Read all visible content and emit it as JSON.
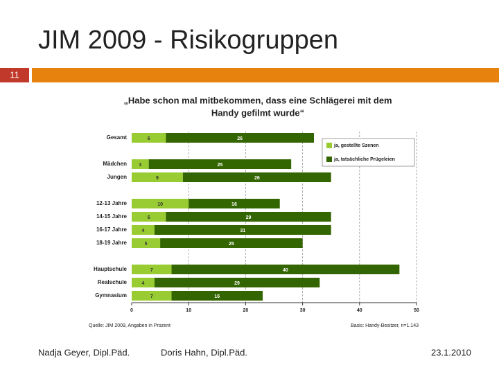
{
  "header": {
    "title": "JIM 2009 - Risikogruppen",
    "slide_number": "11"
  },
  "chart_data": {
    "type": "stacked-bar-horizontal",
    "title": "„Habe schon mal mitbekommen, dass eine Schlägerei mit dem",
    "subtitle": "Handy gefilmt wurde“",
    "categories": [
      "Gesamt",
      null,
      "Mädchen",
      "Jungen",
      null,
      "12-13 Jahre",
      "14-15 Jahre",
      "16-17 Jahre",
      "18-19 Jahre",
      null,
      "Hauptschule",
      "Realschule",
      "Gymnasium"
    ],
    "series": [
      {
        "name": "ja, gestellte Szenen",
        "color": "#99cc33",
        "values": [
          6,
          null,
          3,
          9,
          null,
          10,
          6,
          4,
          5,
          null,
          7,
          4,
          7
        ]
      },
      {
        "name": "ja, tatsächliche Prügeleien",
        "color": "#336600",
        "values": [
          26,
          null,
          25,
          26,
          null,
          16,
          29,
          31,
          25,
          null,
          40,
          29,
          16
        ]
      }
    ],
    "xlim": [
      0,
      50
    ],
    "xticks": [
      0,
      10,
      20,
      30,
      40,
      50
    ],
    "grid": true,
    "legend": "upper right",
    "source": "Quelle: JIM 2009, Angaben in Prozent",
    "note": "Basis: Handy-Besitzer, n=1.143"
  },
  "footer": {
    "author1": "Nadja Geyer, Dipl.Päd.",
    "author2": "Doris Hahn, Dipl.Päd.",
    "date": "23.1.2010"
  }
}
